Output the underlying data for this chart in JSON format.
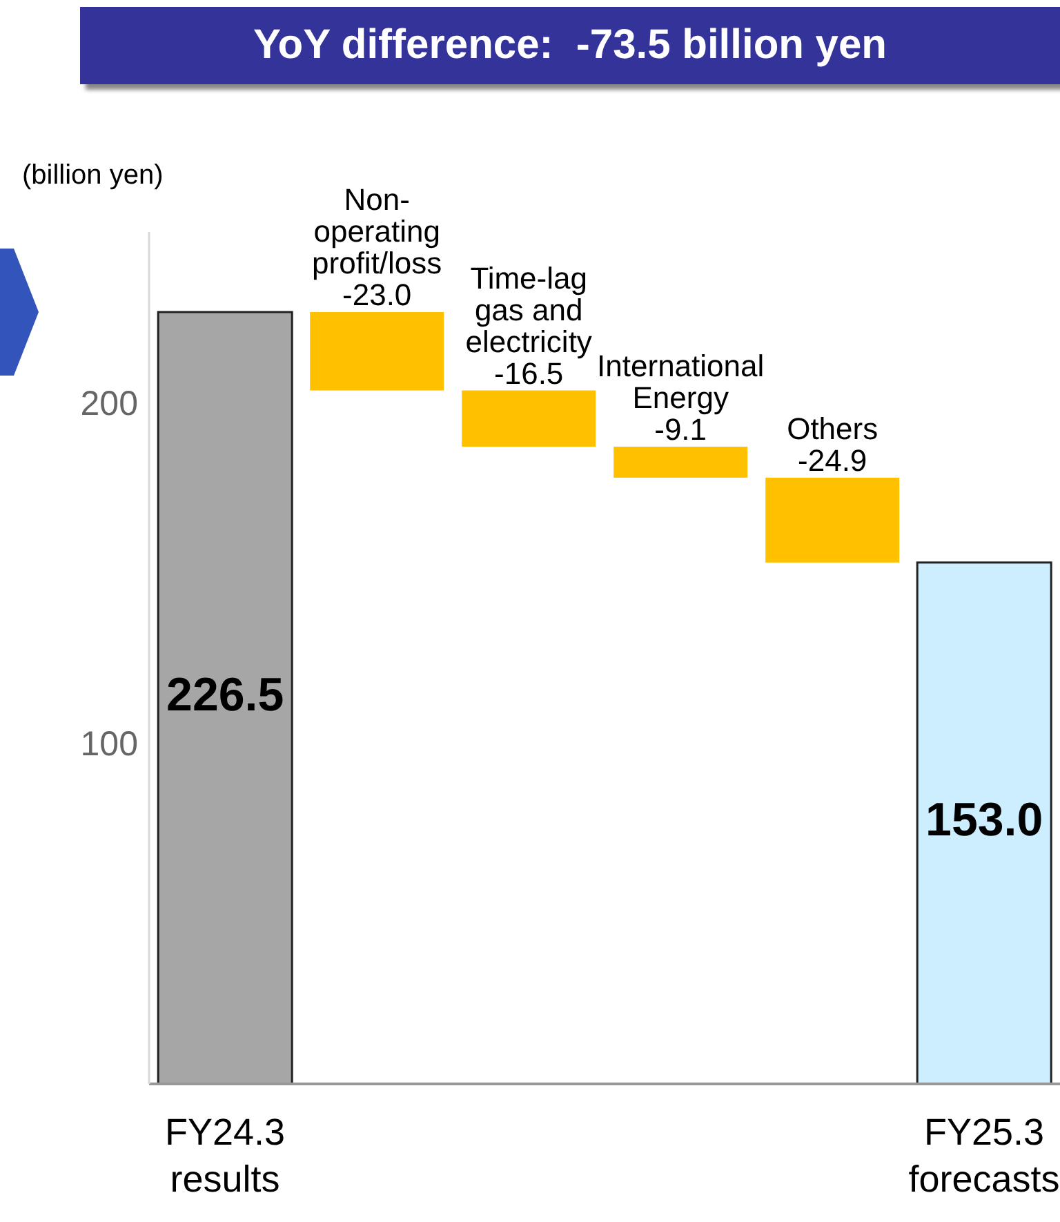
{
  "chart_data": {
    "type": "bar",
    "title": "YoY difference:  -73.5 billion yen",
    "ylabel": "(billion yen)",
    "categories": [
      "FY24.3\nresults",
      null,
      null,
      null,
      null,
      "FY25.3\nforecasts"
    ],
    "values": [
      226.5,
      -23.0,
      -16.5,
      -9.1,
      -24.9,
      153.0
    ],
    "base": [
      0,
      226.5,
      203.5,
      187.0,
      177.9,
      0
    ],
    "colors": [
      "#a6a6a6",
      "#ffc000",
      "#ffc000",
      "#ffc000",
      "#ffc000",
      "#cdeeff"
    ],
    "value_labels": [
      "226.5",
      "Non-\noperating\nprofit/loss\n-23.0",
      "Time-lag\ngas and\nelectricity\n-16.5",
      "International\nEnergy\n-9.1",
      "Others\n-24.9",
      "153.0"
    ],
    "ylim": [
      0,
      250
    ],
    "yticks": [
      100,
      200
    ],
    "grid": false,
    "legend": false
  }
}
